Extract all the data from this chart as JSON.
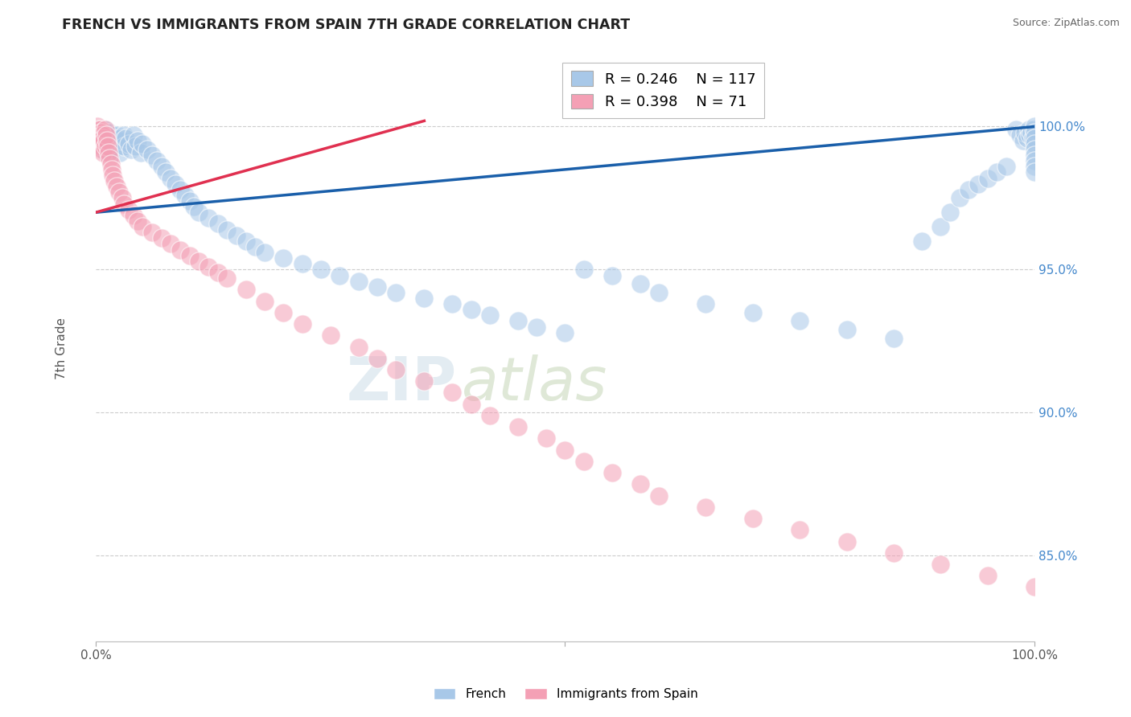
{
  "title": "FRENCH VS IMMIGRANTS FROM SPAIN 7TH GRADE CORRELATION CHART",
  "source": "Source: ZipAtlas.com",
  "ylabel": "7th Grade",
  "right_ytick_labels": [
    "100.0%",
    "95.0%",
    "90.0%",
    "85.0%"
  ],
  "right_ytick_values": [
    1.0,
    0.95,
    0.9,
    0.85
  ],
  "xmin": 0.0,
  "xmax": 1.0,
  "ymin": 0.82,
  "ymax": 1.025,
  "legend_french_R": "0.246",
  "legend_french_N": "117",
  "legend_spain_R": "0.398",
  "legend_spain_N": "71",
  "french_color": "#a8c8e8",
  "spain_color": "#f4a0b5",
  "french_line_color": "#1a5faa",
  "spain_line_color": "#e03050",
  "watermark_zip": "ZIP",
  "watermark_atlas": "atlas",
  "french_x": [
    0.002,
    0.003,
    0.004,
    0.004,
    0.005,
    0.005,
    0.006,
    0.006,
    0.007,
    0.007,
    0.008,
    0.008,
    0.009,
    0.009,
    0.01,
    0.01,
    0.01,
    0.011,
    0.011,
    0.012,
    0.012,
    0.013,
    0.013,
    0.014,
    0.015,
    0.015,
    0.016,
    0.017,
    0.018,
    0.018,
    0.02,
    0.021,
    0.022,
    0.023,
    0.025,
    0.026,
    0.028,
    0.03,
    0.03,
    0.032,
    0.035,
    0.038,
    0.04,
    0.042,
    0.045,
    0.048,
    0.05,
    0.055,
    0.06,
    0.065,
    0.07,
    0.075,
    0.08,
    0.085,
    0.09,
    0.095,
    0.1,
    0.105,
    0.11,
    0.12,
    0.13,
    0.14,
    0.15,
    0.16,
    0.17,
    0.18,
    0.2,
    0.22,
    0.24,
    0.26,
    0.28,
    0.3,
    0.32,
    0.35,
    0.38,
    0.4,
    0.42,
    0.45,
    0.47,
    0.5,
    0.52,
    0.55,
    0.58,
    0.6,
    0.65,
    0.7,
    0.75,
    0.8,
    0.85,
    0.88,
    0.9,
    0.91,
    0.92,
    0.93,
    0.94,
    0.95,
    0.96,
    0.97,
    0.98,
    0.985,
    0.988,
    0.99,
    0.992,
    0.994,
    0.995,
    0.997,
    0.998,
    0.999,
    1.0,
    1.0,
    1.0,
    1.0,
    1.0,
    1.0,
    1.0,
    1.0,
    1.0
  ],
  "french_y": [
    0.997,
    0.999,
    0.998,
    0.995,
    0.997,
    0.993,
    0.998,
    0.994,
    0.999,
    0.995,
    0.998,
    0.993,
    0.997,
    0.992,
    0.999,
    0.996,
    0.993,
    0.997,
    0.991,
    0.998,
    0.994,
    0.996,
    0.992,
    0.995,
    0.998,
    0.993,
    0.996,
    0.994,
    0.997,
    0.992,
    0.996,
    0.994,
    0.997,
    0.993,
    0.996,
    0.991,
    0.995,
    0.997,
    0.993,
    0.996,
    0.994,
    0.992,
    0.997,
    0.993,
    0.995,
    0.991,
    0.994,
    0.992,
    0.99,
    0.988,
    0.986,
    0.984,
    0.982,
    0.98,
    0.978,
    0.976,
    0.974,
    0.972,
    0.97,
    0.968,
    0.966,
    0.964,
    0.962,
    0.96,
    0.958,
    0.956,
    0.954,
    0.952,
    0.95,
    0.948,
    0.946,
    0.944,
    0.942,
    0.94,
    0.938,
    0.936,
    0.934,
    0.932,
    0.93,
    0.928,
    0.95,
    0.948,
    0.945,
    0.942,
    0.938,
    0.935,
    0.932,
    0.929,
    0.926,
    0.96,
    0.965,
    0.97,
    0.975,
    0.978,
    0.98,
    0.982,
    0.984,
    0.986,
    0.999,
    0.997,
    0.995,
    0.998,
    0.996,
    0.999,
    0.997,
    0.998,
    0.996,
    0.999,
    1.0,
    0.998,
    0.996,
    0.994,
    0.992,
    0.99,
    0.988,
    0.986,
    0.984
  ],
  "spain_x": [
    0.001,
    0.002,
    0.002,
    0.003,
    0.003,
    0.004,
    0.004,
    0.005,
    0.005,
    0.006,
    0.006,
    0.007,
    0.007,
    0.008,
    0.008,
    0.009,
    0.01,
    0.01,
    0.011,
    0.012,
    0.013,
    0.014,
    0.015,
    0.016,
    0.017,
    0.018,
    0.02,
    0.022,
    0.025,
    0.028,
    0.03,
    0.035,
    0.04,
    0.045,
    0.05,
    0.06,
    0.07,
    0.08,
    0.09,
    0.1,
    0.11,
    0.12,
    0.13,
    0.14,
    0.16,
    0.18,
    0.2,
    0.22,
    0.25,
    0.28,
    0.3,
    0.32,
    0.35,
    0.38,
    0.4,
    0.42,
    0.45,
    0.48,
    0.5,
    0.52,
    0.55,
    0.58,
    0.6,
    0.65,
    0.7,
    0.75,
    0.8,
    0.85,
    0.9,
    0.95,
    1.0
  ],
  "spain_y": [
    0.999,
    1.0,
    0.997,
    0.999,
    0.996,
    0.998,
    0.994,
    0.999,
    0.995,
    0.998,
    0.993,
    0.997,
    0.992,
    0.996,
    0.991,
    0.995,
    0.999,
    0.993,
    0.997,
    0.995,
    0.993,
    0.991,
    0.989,
    0.987,
    0.985,
    0.983,
    0.981,
    0.979,
    0.977,
    0.975,
    0.973,
    0.971,
    0.969,
    0.967,
    0.965,
    0.963,
    0.961,
    0.959,
    0.957,
    0.955,
    0.953,
    0.951,
    0.949,
    0.947,
    0.943,
    0.939,
    0.935,
    0.931,
    0.927,
    0.923,
    0.919,
    0.915,
    0.911,
    0.907,
    0.903,
    0.899,
    0.895,
    0.891,
    0.887,
    0.883,
    0.879,
    0.875,
    0.871,
    0.867,
    0.863,
    0.859,
    0.855,
    0.851,
    0.847,
    0.843,
    0.839
  ],
  "french_line_x0": 0.0,
  "french_line_x1": 1.0,
  "french_line_y0": 0.97,
  "french_line_y1": 1.0,
  "spain_line_x0": 0.0,
  "spain_line_x1": 0.35,
  "spain_line_y0": 0.97,
  "spain_line_y1": 1.002
}
